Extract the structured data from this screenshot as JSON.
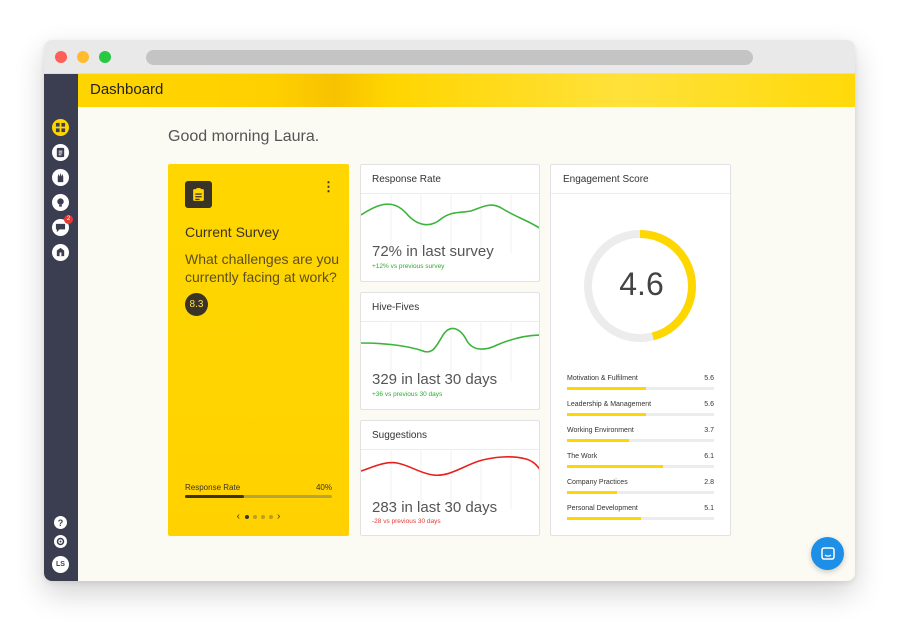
{
  "app": {
    "page_title": "Dashboard",
    "greeting": "Good morning Laura."
  },
  "sidebar": {
    "items": [
      {
        "name": "dashboard-icon",
        "active": true
      },
      {
        "name": "survey-icon",
        "active": false
      },
      {
        "name": "hive-five-icon",
        "active": false
      },
      {
        "name": "suggestions-icon",
        "active": false
      },
      {
        "name": "messages-icon",
        "active": false,
        "badge": "2"
      },
      {
        "name": "reports-icon",
        "active": false
      }
    ],
    "help_label": "?",
    "avatar_initials": "LS"
  },
  "survey_card": {
    "label": "Current Survey",
    "question": "What challenges are you currently facing at work?",
    "score": "8.3",
    "response_rate_label": "Response Rate",
    "response_rate_value": "40%",
    "response_rate_fraction": 0.4,
    "pager_prev": "‹",
    "pager_next": "›",
    "pages": 5,
    "active_page": 1
  },
  "response_rate_card": {
    "title": "Response Rate",
    "headline": "72% in last survey",
    "delta": "+12% vs previous survey",
    "delta_color": "#2eaa32",
    "line_color": "#3cb43c"
  },
  "hive_fives_card": {
    "title": "Hive-Fives",
    "headline": "329 in last 30 days",
    "delta": "+36 vs previous 30 days",
    "delta_color": "#2eaa32",
    "line_color": "#3cb43c"
  },
  "suggestions_card": {
    "title": "Suggestions",
    "headline": "283 in last 30 days",
    "delta": "-28 vs previous 30 days",
    "delta_color": "#e53935",
    "line_color": "#e8201d"
  },
  "engagement": {
    "title": "Engagement Score",
    "score": "4.6",
    "gauge_fraction": 0.46,
    "accent": "#ffd700",
    "metrics": [
      {
        "name": "Motivation & Fulfilment",
        "value": "5.6",
        "fraction": 0.54
      },
      {
        "name": "Leadership & Management",
        "value": "5.6",
        "fraction": 0.54
      },
      {
        "name": "Working Environment",
        "value": "3.7",
        "fraction": 0.42
      },
      {
        "name": "The Work",
        "value": "6.1",
        "fraction": 0.65
      },
      {
        "name": "Company Practices",
        "value": "2.8",
        "fraction": 0.34
      },
      {
        "name": "Personal Development",
        "value": "5.1",
        "fraction": 0.5
      }
    ]
  },
  "colors": {
    "brand_yellow": "#ffd600",
    "sidebar_bg": "#3a3e50",
    "chat_blue": "#1d8fe6"
  }
}
